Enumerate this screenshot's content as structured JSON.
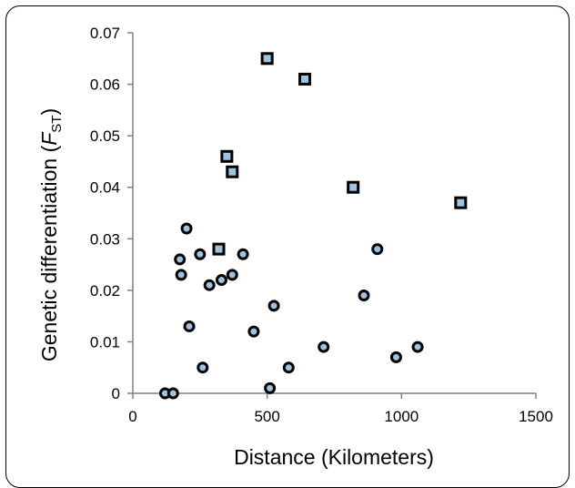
{
  "chart_data": {
    "type": "scatter",
    "xlabel": "Distance (Kilometers)",
    "ylabel_prefix": "Genetic differentiation (",
    "ylabel_F": "F",
    "ylabel_sub": "ST",
    "ylabel_suffix": ")",
    "xlim": [
      0,
      1500
    ],
    "ylim": [
      0,
      0.07
    ],
    "x_ticks": [
      "0",
      "500",
      "1000",
      "1500"
    ],
    "y_ticks": [
      "0",
      "0.01",
      "0.02",
      "0.03",
      "0.04",
      "0.05",
      "0.06",
      "0.07"
    ],
    "grid": false,
    "legend": "none",
    "colors": {
      "marker_fill": "#9ec3e0",
      "marker_edge": "#000000",
      "axis": "#808080"
    },
    "series": [
      {
        "marker": "circle",
        "points": [
          {
            "x": 120,
            "y": 0.0
          },
          {
            "x": 150,
            "y": 0.0
          },
          {
            "x": 175,
            "y": 0.026
          },
          {
            "x": 180,
            "y": 0.023
          },
          {
            "x": 200,
            "y": 0.032
          },
          {
            "x": 210,
            "y": 0.013
          },
          {
            "x": 250,
            "y": 0.027
          },
          {
            "x": 260,
            "y": 0.005
          },
          {
            "x": 285,
            "y": 0.021
          },
          {
            "x": 330,
            "y": 0.022
          },
          {
            "x": 370,
            "y": 0.023
          },
          {
            "x": 410,
            "y": 0.027
          },
          {
            "x": 450,
            "y": 0.012
          },
          {
            "x": 510,
            "y": 0.001
          },
          {
            "x": 525,
            "y": 0.017
          },
          {
            "x": 580,
            "y": 0.005
          },
          {
            "x": 710,
            "y": 0.009
          },
          {
            "x": 860,
            "y": 0.019
          },
          {
            "x": 910,
            "y": 0.028
          },
          {
            "x": 980,
            "y": 0.007
          },
          {
            "x": 1060,
            "y": 0.009
          }
        ]
      },
      {
        "marker": "square",
        "points": [
          {
            "x": 320,
            "y": 0.028
          },
          {
            "x": 350,
            "y": 0.046
          },
          {
            "x": 370,
            "y": 0.043
          },
          {
            "x": 500,
            "y": 0.065
          },
          {
            "x": 640,
            "y": 0.061
          },
          {
            "x": 820,
            "y": 0.04
          },
          {
            "x": 1220,
            "y": 0.037
          }
        ]
      }
    ]
  }
}
